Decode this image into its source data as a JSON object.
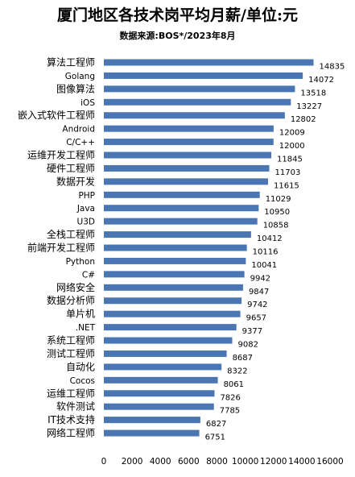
{
  "chart_data": {
    "type": "bar",
    "orientation": "horizontal",
    "title": "厦门地区各技术岗平均月薪/单位:元",
    "subtitle": "数据来源:BOS*/2023年8月",
    "xlim": [
      0,
      16000
    ],
    "xticks": [
      0,
      2000,
      4000,
      6000,
      8000,
      10000,
      12000,
      14000,
      16000
    ],
    "xtick_labels": [
      "0",
      "2000",
      "4000",
      "6000",
      "8000",
      "10000",
      "12000",
      "14000",
      "16000"
    ],
    "bar_color": "#4a77b4",
    "categories": [
      "算法工程师",
      "Golang",
      "图像算法",
      "iOS",
      "嵌入式软件工程师",
      "Android",
      "C/C++",
      "运维开发工程师",
      "硬件工程师",
      "数据开发",
      "PHP",
      "Java",
      "U3D",
      "全栈工程师",
      "前端开发工程师",
      "Python",
      "C#",
      "网络安全",
      "数据分析师",
      "单片机",
      ".NET",
      "系统工程师",
      "测试工程师",
      "自动化",
      "Cocos",
      "运维工程师",
      "软件测试",
      "IT技术支持",
      "网络工程师"
    ],
    "values": [
      14835,
      14072,
      13518,
      13227,
      12802,
      12009,
      12000,
      11845,
      11703,
      11615,
      11029,
      10950,
      10858,
      10412,
      10116,
      10041,
      9942,
      9847,
      9742,
      9657,
      9377,
      9082,
      8687,
      8322,
      8061,
      7826,
      7785,
      6827,
      6751
    ]
  }
}
